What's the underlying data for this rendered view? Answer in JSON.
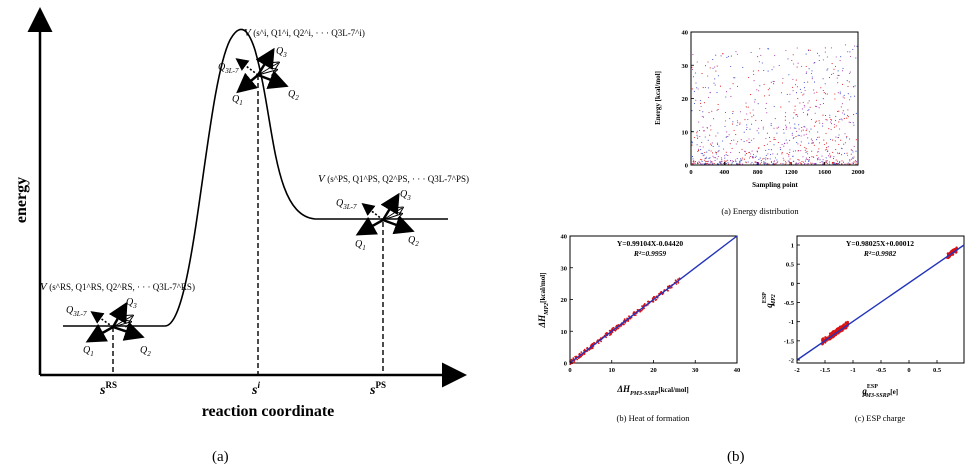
{
  "panel_a": {
    "ylabel": "energy",
    "xlabel": "reaction coordinate",
    "caption": "(a)",
    "ticks": {
      "rs": "RS",
      "ts": "i",
      "ps": "PS",
      "s": "s"
    },
    "rs_label": {
      "V": "V",
      "args": "(s^RS, Q1^RS, Q2^RS, · · · Q3L-7^RS)"
    },
    "ts_label": {
      "V": "V",
      "args": "(s^i, Q1^i, Q2^i, · · · Q3L-7^i)"
    },
    "ps_label": {
      "V": "V",
      "args": "(s^PS, Q1^PS, Q2^PS, · · · Q3L-7^PS)"
    },
    "q": {
      "q1": "Q",
      "sub1": "1",
      "sub2": "2",
      "sub3": "3",
      "subn": "3L-7"
    }
  },
  "panel_b": {
    "caption": "(b)",
    "energy": {
      "caption": "(a) Energy distribution",
      "xlabel": "Sampling point",
      "ylabel": "Energy [kcal/mol]",
      "xticks": [
        "0",
        "400",
        "800",
        "1200",
        "1600",
        "2000"
      ],
      "yticks": [
        "0",
        "10",
        "20",
        "30",
        "40"
      ]
    },
    "heat": {
      "caption": "(b) Heat of formation",
      "eq": "Y=0.99104X-0.04420",
      "r2": "R²=0.9959",
      "xlabel": "ΔH",
      "xsub": "PM3-SSRP",
      "xunit": "[kcal/mol]",
      "ylabel": "ΔH",
      "ysub": "MP2",
      "yunit": "[kcal/mol]",
      "xticks": [
        "0",
        "10",
        "20",
        "30",
        "40"
      ],
      "yticks": [
        "0",
        "10",
        "20",
        "30",
        "40"
      ]
    },
    "esp": {
      "caption": "(c) ESP charge",
      "eq": "Y=0.98025X+0.00012",
      "r2": "R²=0.9982",
      "xlabel": "q",
      "xsup": "ESP",
      "xsub": "PM3-SSRP",
      "xunit": "[e]",
      "ylabel": "q",
      "ysup": "ESP",
      "ysub": "MP2",
      "xticks": [
        "-2",
        "-1.5",
        "-1",
        "-0.5",
        "0",
        "0.5"
      ],
      "yticks": [
        "-2",
        "-1.5",
        "-1",
        "-0.5",
        "0",
        "0.5",
        "1"
      ]
    }
  },
  "colors": {
    "fit": "#2233bb",
    "points_red": "#dd1111",
    "points_blue": "#3344cc",
    "points_purple": "#aa33aa"
  }
}
